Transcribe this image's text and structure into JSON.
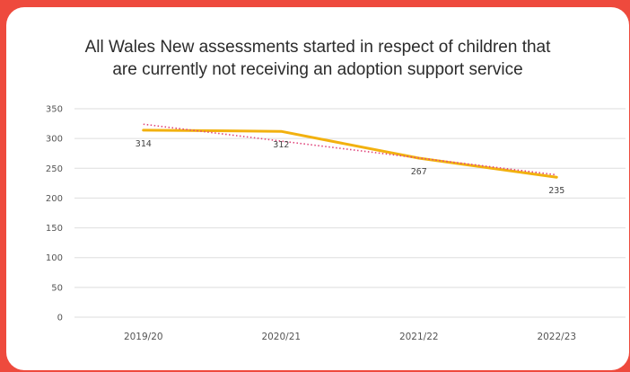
{
  "chart_data": {
    "type": "line",
    "title_lines": [
      "All Wales New assessments started in respect of children that",
      "are currently not receiving an adoption support service"
    ],
    "categories": [
      "2019/20",
      "2020/21",
      "2021/22",
      "2022/23"
    ],
    "series": [
      {
        "values": [
          314,
          312,
          267,
          235
        ],
        "color": "#f2b10f",
        "data_labels": [
          "314",
          "312",
          "267",
          "235"
        ]
      }
    ],
    "trendline": {
      "style": "dotted",
      "color": "#e0457b",
      "start": 324,
      "end": 239
    },
    "ylim": [
      0,
      350
    ],
    "yticks": [
      0,
      50,
      100,
      150,
      200,
      250,
      300,
      350
    ],
    "grid": true,
    "legend": "none"
  }
}
